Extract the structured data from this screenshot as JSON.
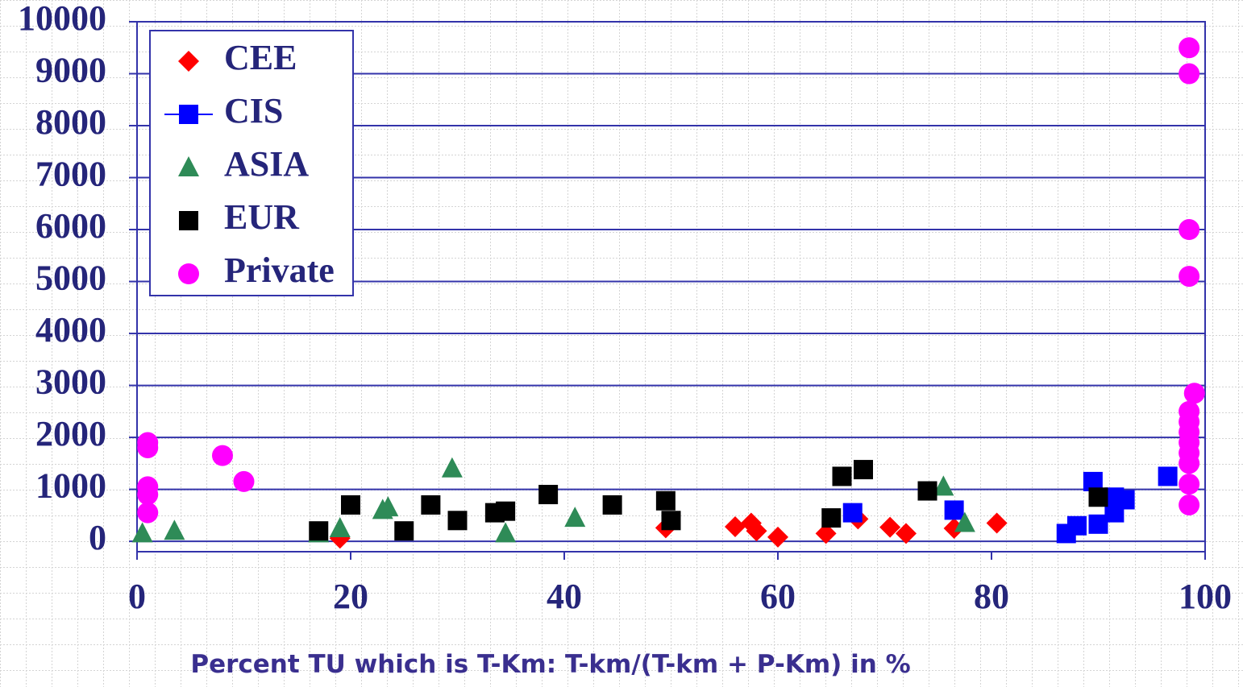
{
  "chart_data": {
    "type": "scatter",
    "x_label": "Percent TU which is T-Km: T-km/(T-km + P-Km) in %",
    "xlim": [
      0,
      100
    ],
    "xticks": [
      0,
      20,
      40,
      60,
      80,
      100
    ],
    "ylim": [
      -200,
      10000
    ],
    "yticks": [
      0,
      1000,
      2000,
      3000,
      4000,
      5000,
      6000,
      7000,
      8000,
      9000,
      10000
    ],
    "grid": true,
    "legend": "top-left",
    "series": [
      {
        "name": "CEE",
        "color": "#ff0000",
        "marker": "diamond",
        "x": [
          19,
          49.5,
          56,
          57.5,
          58,
          60,
          64.5,
          67.5,
          70.5,
          72,
          76.5,
          80.5
        ],
        "values": [
          60,
          260,
          280,
          350,
          200,
          80,
          150,
          430,
          270,
          150,
          250,
          350
        ]
      },
      {
        "name": "CIS",
        "color": "#0000ff",
        "marker": "square",
        "x": [
          67,
          76.5,
          87,
          88,
          89.5,
          90,
          91.5,
          91.5,
          92.5,
          96.5
        ],
        "values": [
          550,
          600,
          150,
          300,
          1150,
          330,
          550,
          850,
          800,
          1250
        ]
      },
      {
        "name": "ASIA",
        "color": "#2e8b57",
        "marker": "triangle",
        "x": [
          0.5,
          3.5,
          17,
          19,
          23,
          23.5,
          29.5,
          34.5,
          41,
          75.5,
          77.5
        ],
        "values": [
          150,
          200,
          150,
          250,
          600,
          650,
          1400,
          150,
          450,
          1050,
          350
        ]
      },
      {
        "name": "EUR",
        "color": "#000000",
        "marker": "square",
        "x": [
          17,
          20,
          25,
          27.5,
          30,
          33.5,
          34.5,
          38.5,
          44.5,
          49.5,
          50,
          65,
          66,
          68,
          74,
          90
        ],
        "values": [
          200,
          700,
          200,
          700,
          400,
          550,
          580,
          900,
          700,
          780,
          400,
          450,
          1250,
          1380,
          970,
          850
        ]
      },
      {
        "name": "Private",
        "color": "#ff00ff",
        "marker": "circle",
        "x": [
          1,
          1,
          1,
          1,
          1,
          8,
          10,
          98.5,
          98.5,
          98.5,
          98.5,
          99,
          98.5,
          98.5,
          98.5,
          98.5,
          98.5,
          98.5,
          98.5,
          98.5
        ],
        "values": [
          1900,
          1800,
          1050,
          900,
          550,
          1650,
          1150,
          9500,
          9000,
          6000,
          5100,
          2850,
          2500,
          2300,
          2100,
          1900,
          1700,
          1500,
          1100,
          700
        ]
      }
    ]
  }
}
